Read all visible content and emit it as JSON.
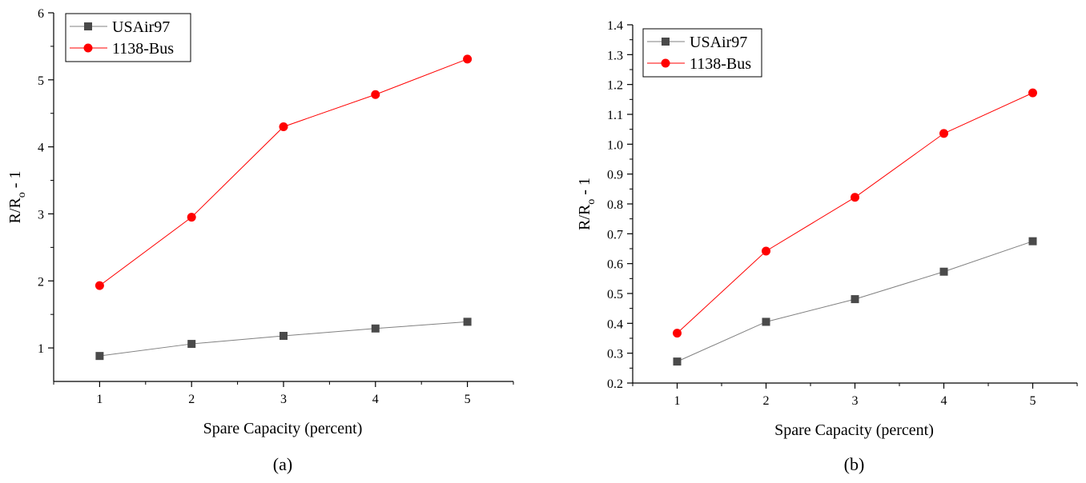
{
  "chart_data": [
    {
      "type": "line",
      "panel_label": "(a)",
      "xlabel": "Spare Capacity (percent)",
      "ylabel": {
        "main": "R/R",
        "sub": "o",
        "suffix": " - 1"
      },
      "x": [
        1,
        2,
        3,
        4,
        5
      ],
      "xlim": [
        0.5,
        5.5
      ],
      "ylim": [
        0.5,
        6
      ],
      "xticks": [
        1,
        2,
        3,
        4,
        5
      ],
      "yticks": [
        1,
        2,
        3,
        4,
        5,
        6
      ],
      "ytick_labels": [
        "1",
        "2",
        "3",
        "4",
        "5",
        "6"
      ],
      "grid": false,
      "legend_position": "top-left",
      "series": [
        {
          "name": "USAir97",
          "values": [
            0.88,
            1.06,
            1.18,
            1.29,
            1.39
          ],
          "color": "#4a4a4a",
          "line_color": "#808080",
          "marker": "square"
        },
        {
          "name": "1138-Bus",
          "values": [
            1.93,
            2.95,
            4.3,
            4.78,
            5.31
          ],
          "color": "#ff0000",
          "line_color": "#ff0000",
          "marker": "circle"
        }
      ]
    },
    {
      "type": "line",
      "panel_label": "(b)",
      "xlabel": "Spare Capacity (percent)",
      "ylabel": {
        "main": "R/R",
        "sub": "o",
        "suffix": " - 1"
      },
      "x": [
        1,
        2,
        3,
        4,
        5
      ],
      "xlim": [
        0.5,
        5.5
      ],
      "ylim": [
        0.2,
        1.4
      ],
      "xticks": [
        1,
        2,
        3,
        4,
        5
      ],
      "yticks": [
        0.2,
        0.3,
        0.4,
        0.5,
        0.6,
        0.7,
        0.8,
        0.9,
        1.0,
        1.1,
        1.2,
        1.3,
        1.4
      ],
      "ytick_labels": [
        "0.2",
        "0.3",
        "0.4",
        "0.5",
        "0.6",
        "0.7",
        "0.8",
        "0.9",
        "1.0",
        "1.1",
        "1.2",
        "1.3",
        "1.4"
      ],
      "grid": false,
      "legend_position": "top-left",
      "series": [
        {
          "name": "USAir97",
          "values": [
            0.272,
            0.405,
            0.481,
            0.573,
            0.675
          ],
          "color": "#4a4a4a",
          "line_color": "#808080",
          "marker": "square"
        },
        {
          "name": "1138-Bus",
          "values": [
            0.367,
            0.642,
            0.822,
            1.036,
            1.172
          ],
          "color": "#ff0000",
          "line_color": "#ff0000",
          "marker": "circle"
        }
      ]
    }
  ]
}
